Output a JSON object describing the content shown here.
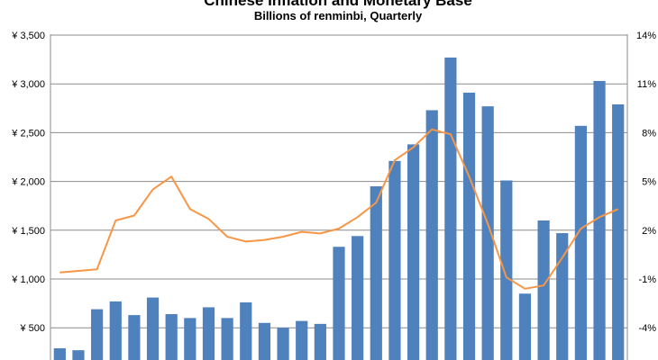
{
  "chart_data": {
    "type": "bar",
    "title": "Chinese Inflation and Monetary Base",
    "subtitle": "Billions of renminbi, Quarterly",
    "y_left": {
      "ticks": [
        500,
        1000,
        1500,
        2000,
        2500,
        3000,
        3500
      ],
      "tick_labels": [
        "¥ 500",
        "¥ 1,000",
        "¥ 1,500",
        "¥ 2,000",
        "¥ 2,500",
        "¥ 3,000",
        "¥ 3,500"
      ],
      "range": [
        0,
        3500
      ]
    },
    "y_right": {
      "ticks": [
        -4,
        -1,
        2,
        5,
        8,
        11,
        14
      ],
      "tick_labels": [
        "-4%",
        "-1%",
        "2%",
        "5%",
        "8%",
        "11%",
        "14%"
      ],
      "range": [
        -4,
        14
      ]
    },
    "grid": true,
    "series": [
      {
        "kind": "bar",
        "color": "#4f81bd",
        "values": [
          290,
          270,
          690,
          770,
          630,
          810,
          640,
          600,
          710,
          600,
          760,
          550,
          500,
          570,
          540,
          1330,
          1440,
          1950,
          2210,
          2380,
          2730,
          3270,
          2910,
          2770,
          2010,
          850,
          1600,
          1470,
          2570,
          3030,
          2790
        ]
      },
      {
        "kind": "line",
        "color": "#f79646",
        "axis": "right",
        "values": [
          -0.6,
          -0.5,
          -0.4,
          2.6,
          2.9,
          4.5,
          5.3,
          3.3,
          2.7,
          1.6,
          1.3,
          1.4,
          1.6,
          1.9,
          1.8,
          2.1,
          2.8,
          3.7,
          6.3,
          7.1,
          8.2,
          7.9,
          5.3,
          2.4,
          -0.9,
          -1.6,
          -1.4,
          0.3,
          2.1,
          2.8,
          3.3
        ]
      }
    ]
  }
}
